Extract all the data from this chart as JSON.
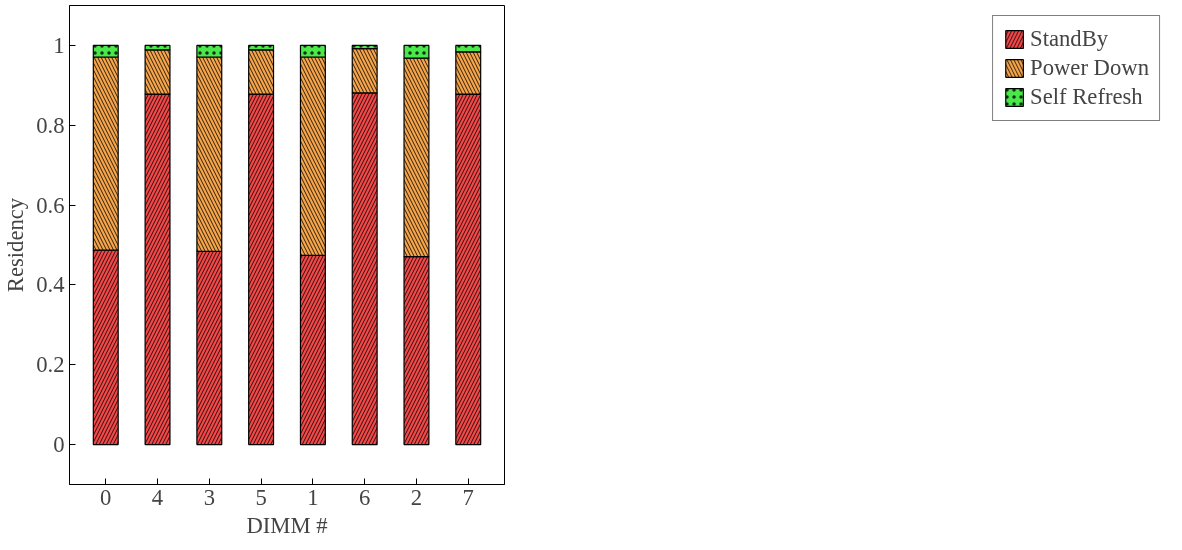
{
  "chart_data": {
    "type": "bar",
    "stacked": true,
    "xlabel": "DIMM #",
    "ylabel": "Residency",
    "categories": [
      "0",
      "4",
      "3",
      "5",
      "1",
      "6",
      "2",
      "7"
    ],
    "series": [
      {
        "name": "StandBy",
        "color": "#f24848",
        "values": [
          0.487,
          0.878,
          0.484,
          0.878,
          0.474,
          0.881,
          0.471,
          0.878
        ]
      },
      {
        "name": "Power Down",
        "color": "#f6a54a",
        "values": [
          0.484,
          0.111,
          0.487,
          0.111,
          0.497,
          0.111,
          0.497,
          0.106
        ]
      },
      {
        "name": "Self Refresh",
        "color": "#4ae84a",
        "values": [
          0.029,
          0.011,
          0.029,
          0.011,
          0.029,
          0.008,
          0.032,
          0.016
        ]
      }
    ],
    "ylim": [
      -0.1,
      1.1
    ],
    "yticks": [
      0,
      0.2,
      0.4,
      0.6,
      0.8,
      1
    ],
    "grid": false,
    "legend": "right"
  }
}
